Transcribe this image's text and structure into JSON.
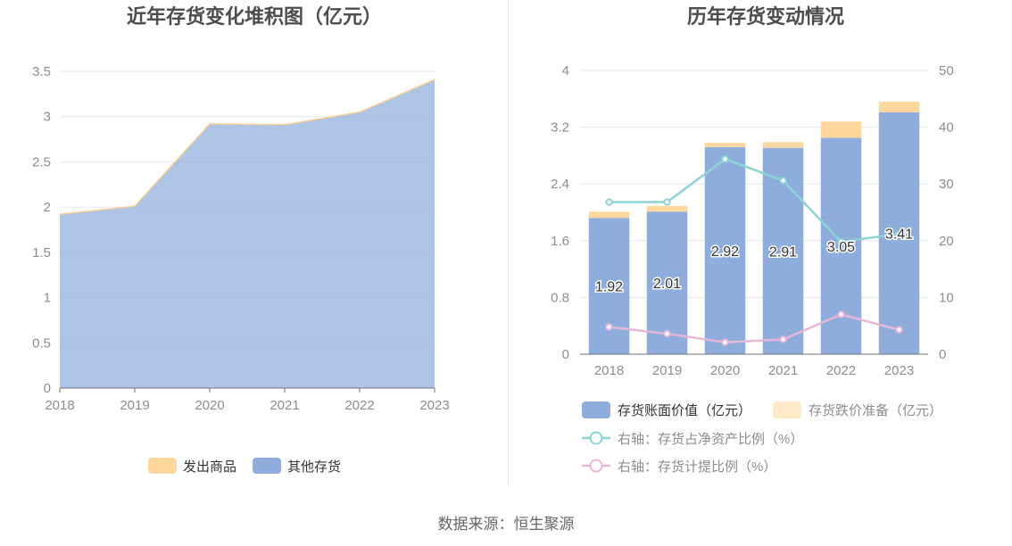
{
  "charts": [
    {
      "title": "近年存货变化堆积图（亿元）",
      "chart_data": {
        "type": "area",
        "x": [
          "2018",
          "2019",
          "2020",
          "2021",
          "2022",
          "2023"
        ],
        "ylim": [
          0,
          3.5
        ],
        "yticks": [
          "0",
          "0.5",
          "1",
          "1.5",
          "2",
          "2.5",
          "3",
          "3.5"
        ],
        "grid": true,
        "legend_position": "bottom",
        "series": [
          {
            "name": "其他存货",
            "values": [
              1.92,
              2.01,
              2.92,
              2.91,
              3.05,
              3.41
            ],
            "color": "#8eaddc"
          },
          {
            "name": "发出商品",
            "values": [
              0.0,
              0.0,
              0.0,
              0.0,
              0.0,
              0.0
            ],
            "color": "#fdd79d"
          }
        ],
        "legend": [
          {
            "name": "发出商品",
            "color": "#fdd79d"
          },
          {
            "name": "其他存货",
            "color": "#8eaddc"
          }
        ]
      }
    },
    {
      "title": "历年存货变动情况",
      "chart_data": {
        "type": "bar",
        "x": [
          "2018",
          "2019",
          "2020",
          "2021",
          "2022",
          "2023"
        ],
        "ylim": [
          0,
          4
        ],
        "yticks": [
          "0",
          "0.8",
          "1.6",
          "2.4",
          "3.2",
          "4"
        ],
        "y2lim": [
          0,
          50
        ],
        "y2ticks": [
          "0",
          "10",
          "20",
          "30",
          "40",
          "50"
        ],
        "grid": true,
        "legend_position": "bottom",
        "series": [
          {
            "name": "存货账面价值（亿元）",
            "kind": "bar",
            "axis": "left",
            "color": "#8eaddc",
            "values": [
              1.92,
              2.01,
              2.92,
              2.91,
              3.05,
              3.41
            ],
            "labels": [
              "1.92",
              "2.01",
              "2.92",
              "2.91",
              "3.05",
              "3.41"
            ]
          },
          {
            "name": "存货跌价准备（亿元）",
            "kind": "bar",
            "axis": "left",
            "color": "#fdd79d",
            "values": [
              0.09,
              0.08,
              0.06,
              0.08,
              0.23,
              0.15
            ]
          },
          {
            "name": "右轴：存货占净资产比例（%）",
            "kind": "line",
            "axis": "right",
            "color": "#8bd3d5",
            "values": [
              26.8,
              26.8,
              34.4,
              30.6,
              19.8,
              21.2
            ]
          },
          {
            "name": "右轴：存货计提比例（%）",
            "kind": "line",
            "axis": "right",
            "color": "#e6b6d8",
            "values": [
              4.8,
              3.6,
              2.1,
              2.6,
              7.0,
              4.3
            ]
          }
        ]
      }
    }
  ],
  "source": "数据来源：恒生聚源"
}
